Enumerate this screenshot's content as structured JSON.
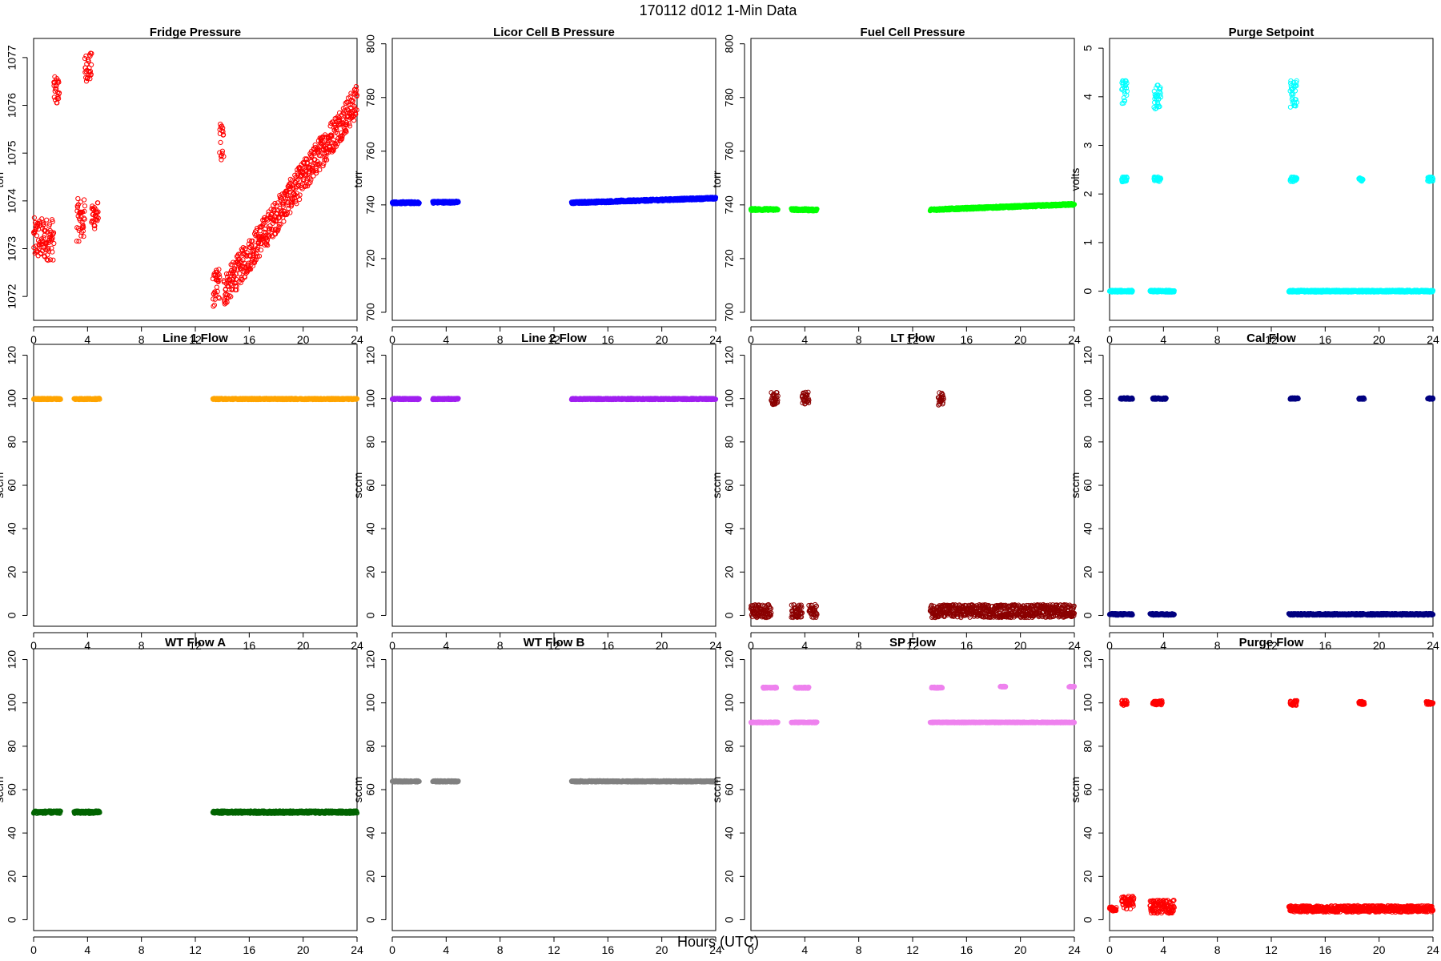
{
  "page": {
    "title": "170112   d012   1-Min Data",
    "xlabel": "Hours (UTC)"
  },
  "chart_data": [
    {
      "type": "scatter",
      "title": "Fridge Pressure",
      "ylabel": "torr",
      "color": "#ff0000",
      "xlim": [
        0,
        24
      ],
      "ylim": [
        1071.5,
        1077.4
      ],
      "yticks": [
        1072,
        1073,
        1074,
        1075,
        1076,
        1077
      ],
      "xticks": [
        0,
        4,
        8,
        12,
        16,
        20,
        24
      ],
      "segments": [
        {
          "x0": 0.0,
          "x1": 1.5,
          "y0": 1073.2,
          "y1": 1073.2,
          "spread": 0.45
        },
        {
          "x0": 1.5,
          "x1": 1.9,
          "y0": 1076.3,
          "y1": 1076.3,
          "spread": 0.3
        },
        {
          "x0": 3.2,
          "x1": 3.8,
          "y0": 1073.6,
          "y1": 1073.6,
          "spread": 0.45
        },
        {
          "x0": 3.8,
          "x1": 4.3,
          "y0": 1076.8,
          "y1": 1076.8,
          "spread": 0.3
        },
        {
          "x0": 4.3,
          "x1": 4.8,
          "y0": 1073.7,
          "y1": 1073.7,
          "spread": 0.3
        },
        {
          "x0": 13.3,
          "x1": 13.8,
          "y0": 1072.1,
          "y1": 1072.3,
          "spread": 0.35
        },
        {
          "x0": 13.8,
          "x1": 14.1,
          "y0": 1075.2,
          "y1": 1075.2,
          "spread": 0.45
        },
        {
          "x0": 14.1,
          "x1": 24.0,
          "y0": 1072.1,
          "y1": 1076.1,
          "spread": 0.35
        }
      ]
    },
    {
      "type": "scatter",
      "title": "Licor Cell B Pressure",
      "ylabel": "torr",
      "color": "#0000ff",
      "xlim": [
        0,
        24
      ],
      "ylim": [
        697,
        802
      ],
      "yticks": [
        700,
        720,
        740,
        760,
        780,
        800
      ],
      "xticks": [
        0,
        4,
        8,
        12,
        16,
        20,
        24
      ],
      "segments": [
        {
          "x0": 0.0,
          "x1": 2.0,
          "y0": 740.8,
          "y1": 740.8,
          "spread": 0.4
        },
        {
          "x0": 3.0,
          "x1": 4.9,
          "y0": 741.0,
          "y1": 741.0,
          "spread": 0.4
        },
        {
          "x0": 13.3,
          "x1": 24.0,
          "y0": 740.8,
          "y1": 742.5,
          "spread": 0.4
        }
      ]
    },
    {
      "type": "scatter",
      "title": "Fuel Cell Pressure",
      "ylabel": "torr",
      "color": "#00ff00",
      "xlim": [
        0,
        24
      ],
      "ylim": [
        697,
        802
      ],
      "yticks": [
        700,
        720,
        740,
        760,
        780,
        800
      ],
      "xticks": [
        0,
        4,
        8,
        12,
        16,
        20,
        24
      ],
      "segments": [
        {
          "x0": 0.0,
          "x1": 2.0,
          "y0": 738.3,
          "y1": 738.3,
          "spread": 0.4
        },
        {
          "x0": 3.0,
          "x1": 4.9,
          "y0": 738.3,
          "y1": 738.1,
          "spread": 0.4
        },
        {
          "x0": 13.3,
          "x1": 24.0,
          "y0": 738.2,
          "y1": 740.2,
          "spread": 0.4
        }
      ]
    },
    {
      "type": "scatter",
      "title": "Purge Setpoint",
      "ylabel": "volts",
      "color": "#00ffff",
      "xlim": [
        0,
        24
      ],
      "ylim": [
        -0.6,
        5.2
      ],
      "yticks": [
        0,
        1,
        2,
        3,
        4,
        5
      ],
      "xticks": [
        0,
        4,
        8,
        12,
        16,
        20,
        24
      ],
      "segments": [
        {
          "x0": 0.0,
          "x1": 1.7,
          "y0": 0,
          "y1": 0,
          "spread": 0.02
        },
        {
          "x0": 0.9,
          "x1": 1.3,
          "y0": 4.1,
          "y1": 4.1,
          "spread": 0.25
        },
        {
          "x0": 0.9,
          "x1": 1.3,
          "y0": 2.3,
          "y1": 2.3,
          "spread": 0.05
        },
        {
          "x0": 3.0,
          "x1": 4.8,
          "y0": 0,
          "y1": 0,
          "spread": 0.02
        },
        {
          "x0": 3.3,
          "x1": 3.8,
          "y0": 4.0,
          "y1": 4.0,
          "spread": 0.25
        },
        {
          "x0": 3.3,
          "x1": 3.8,
          "y0": 2.3,
          "y1": 2.3,
          "spread": 0.05
        },
        {
          "x0": 13.3,
          "x1": 24.0,
          "y0": 0,
          "y1": 0,
          "spread": 0.02
        },
        {
          "x0": 13.4,
          "x1": 13.9,
          "y0": 4.05,
          "y1": 4.05,
          "spread": 0.28
        },
        {
          "x0": 13.4,
          "x1": 13.9,
          "y0": 2.3,
          "y1": 2.3,
          "spread": 0.05
        },
        {
          "x0": 18.5,
          "x1": 18.8,
          "y0": 2.3,
          "y1": 2.3,
          "spread": 0.04
        },
        {
          "x0": 23.6,
          "x1": 24.0,
          "y0": 2.3,
          "y1": 2.3,
          "spread": 0.05
        }
      ]
    },
    {
      "type": "scatter",
      "title": "Line 1 Flow",
      "ylabel": "sccm",
      "color": "#ffa500",
      "xlim": [
        0,
        24
      ],
      "ylim": [
        -5,
        125
      ],
      "yticks": [
        0,
        20,
        40,
        60,
        80,
        100,
        120
      ],
      "xticks": [
        0,
        4,
        8,
        12,
        16,
        20,
        24
      ],
      "segments": [
        {
          "x0": 0.0,
          "x1": 2.0,
          "y0": 99.8,
          "y1": 99.8,
          "spread": 0.3
        },
        {
          "x0": 3.0,
          "x1": 4.9,
          "y0": 99.8,
          "y1": 99.8,
          "spread": 0.3
        },
        {
          "x0": 13.3,
          "x1": 24.0,
          "y0": 99.8,
          "y1": 99.8,
          "spread": 0.3
        }
      ]
    },
    {
      "type": "scatter",
      "title": "Line 2 Flow",
      "ylabel": "sccm",
      "color": "#a020f0",
      "xlim": [
        0,
        24
      ],
      "ylim": [
        -5,
        125
      ],
      "yticks": [
        0,
        20,
        40,
        60,
        80,
        100,
        120
      ],
      "xticks": [
        0,
        4,
        8,
        12,
        16,
        20,
        24
      ],
      "segments": [
        {
          "x0": 0.0,
          "x1": 2.0,
          "y0": 99.8,
          "y1": 99.8,
          "spread": 0.3
        },
        {
          "x0": 3.0,
          "x1": 4.9,
          "y0": 99.8,
          "y1": 99.8,
          "spread": 0.3
        },
        {
          "x0": 13.3,
          "x1": 24.0,
          "y0": 99.8,
          "y1": 99.8,
          "spread": 0.3
        }
      ]
    },
    {
      "type": "scatter",
      "title": "LT Flow",
      "ylabel": "sccm",
      "color": "#8b0000",
      "xlim": [
        0,
        24
      ],
      "ylim": [
        -5,
        125
      ],
      "yticks": [
        0,
        20,
        40,
        60,
        80,
        100,
        120
      ],
      "xticks": [
        0,
        4,
        8,
        12,
        16,
        20,
        24
      ],
      "segments": [
        {
          "x0": 0.0,
          "x1": 1.5,
          "y0": 2,
          "y1": 2,
          "spread": 3
        },
        {
          "x0": 1.5,
          "x1": 2.0,
          "y0": 100,
          "y1": 100,
          "spread": 3
        },
        {
          "x0": 3.0,
          "x1": 3.8,
          "y0": 2,
          "y1": 2,
          "spread": 3
        },
        {
          "x0": 3.8,
          "x1": 4.3,
          "y0": 100,
          "y1": 100,
          "spread": 3
        },
        {
          "x0": 4.3,
          "x1": 4.9,
          "y0": 2,
          "y1": 2,
          "spread": 3
        },
        {
          "x0": 13.3,
          "x1": 24.0,
          "y0": 2,
          "y1": 2,
          "spread": 3
        },
        {
          "x0": 13.9,
          "x1": 14.3,
          "y0": 100,
          "y1": 100,
          "spread": 3
        }
      ]
    },
    {
      "type": "scatter",
      "title": "Cal Flow",
      "ylabel": "sccm",
      "color": "#000080",
      "xlim": [
        0,
        24
      ],
      "ylim": [
        -5,
        125
      ],
      "yticks": [
        0,
        20,
        40,
        60,
        80,
        100,
        120
      ],
      "xticks": [
        0,
        4,
        8,
        12,
        16,
        20,
        24
      ],
      "segments": [
        {
          "x0": 0.0,
          "x1": 1.7,
          "y0": 0.5,
          "y1": 0.5,
          "spread": 0.4
        },
        {
          "x0": 0.8,
          "x1": 1.7,
          "y0": 100,
          "y1": 100,
          "spread": 0.4
        },
        {
          "x0": 3.0,
          "x1": 4.8,
          "y0": 0.5,
          "y1": 0.5,
          "spread": 0.4
        },
        {
          "x0": 3.2,
          "x1": 4.2,
          "y0": 100,
          "y1": 100,
          "spread": 0.4
        },
        {
          "x0": 13.3,
          "x1": 24.0,
          "y0": 0.5,
          "y1": 0.5,
          "spread": 0.4
        },
        {
          "x0": 13.4,
          "x1": 14.0,
          "y0": 100,
          "y1": 100,
          "spread": 0.4
        },
        {
          "x0": 18.5,
          "x1": 18.9,
          "y0": 100,
          "y1": 100,
          "spread": 0.4
        },
        {
          "x0": 23.6,
          "x1": 24.0,
          "y0": 100,
          "y1": 100,
          "spread": 0.4
        }
      ]
    },
    {
      "type": "scatter",
      "title": "WT Flow A",
      "ylabel": "sccm",
      "color": "#006400",
      "xlim": [
        0,
        24
      ],
      "ylim": [
        -5,
        125
      ],
      "yticks": [
        0,
        20,
        40,
        60,
        80,
        100,
        120
      ],
      "xticks": [
        0,
        4,
        8,
        12,
        16,
        20,
        24
      ],
      "segments": [
        {
          "x0": 0.0,
          "x1": 2.0,
          "y0": 49.6,
          "y1": 49.6,
          "spread": 0.6
        },
        {
          "x0": 3.0,
          "x1": 4.9,
          "y0": 49.6,
          "y1": 49.6,
          "spread": 0.6
        },
        {
          "x0": 13.3,
          "x1": 24.0,
          "y0": 49.6,
          "y1": 49.6,
          "spread": 0.6
        }
      ]
    },
    {
      "type": "scatter",
      "title": "WT Flow B",
      "ylabel": "sccm",
      "color": "#808080",
      "xlim": [
        0,
        24
      ],
      "ylim": [
        -5,
        125
      ],
      "yticks": [
        0,
        20,
        40,
        60,
        80,
        100,
        120
      ],
      "xticks": [
        0,
        4,
        8,
        12,
        16,
        20,
        24
      ],
      "segments": [
        {
          "x0": 0.0,
          "x1": 2.0,
          "y0": 63.8,
          "y1": 63.8,
          "spread": 0.3
        },
        {
          "x0": 3.0,
          "x1": 4.9,
          "y0": 63.8,
          "y1": 63.8,
          "spread": 0.3
        },
        {
          "x0": 13.3,
          "x1": 24.0,
          "y0": 63.8,
          "y1": 63.8,
          "spread": 0.3
        }
      ]
    },
    {
      "type": "scatter",
      "title": "SP Flow",
      "ylabel": "sccm",
      "color": "#ee82ee",
      "xlim": [
        0,
        24
      ],
      "ylim": [
        -5,
        125
      ],
      "yticks": [
        0,
        20,
        40,
        60,
        80,
        100,
        120
      ],
      "xticks": [
        0,
        4,
        8,
        12,
        16,
        20,
        24
      ],
      "segments": [
        {
          "x0": 0.0,
          "x1": 2.0,
          "y0": 91,
          "y1": 91,
          "spread": 0.2
        },
        {
          "x0": 0.9,
          "x1": 1.9,
          "y0": 107,
          "y1": 107,
          "spread": 0.3
        },
        {
          "x0": 3.0,
          "x1": 4.9,
          "y0": 91,
          "y1": 91,
          "spread": 0.2
        },
        {
          "x0": 3.3,
          "x1": 4.3,
          "y0": 107,
          "y1": 107,
          "spread": 0.3
        },
        {
          "x0": 13.3,
          "x1": 24.0,
          "y0": 91,
          "y1": 91,
          "spread": 0.2
        },
        {
          "x0": 13.4,
          "x1": 14.2,
          "y0": 107,
          "y1": 107,
          "spread": 0.3
        },
        {
          "x0": 18.5,
          "x1": 18.9,
          "y0": 107.5,
          "y1": 107.5,
          "spread": 0.2
        },
        {
          "x0": 23.6,
          "x1": 24.0,
          "y0": 107.5,
          "y1": 107.5,
          "spread": 0.2
        }
      ]
    },
    {
      "type": "scatter",
      "title": "Purge Flow",
      "ylabel": "sccm",
      "color": "#ff0000",
      "xlim": [
        0,
        24
      ],
      "ylim": [
        -5,
        125
      ],
      "yticks": [
        0,
        20,
        40,
        60,
        80,
        100,
        120
      ],
      "xticks": [
        0,
        4,
        8,
        12,
        16,
        20,
        24
      ],
      "segments": [
        {
          "x0": 0.0,
          "x1": 0.5,
          "y0": 5,
          "y1": 5,
          "spread": 1
        },
        {
          "x0": 0.9,
          "x1": 1.8,
          "y0": 8,
          "y1": 8,
          "spread": 3
        },
        {
          "x0": 0.9,
          "x1": 1.3,
          "y0": 100,
          "y1": 100,
          "spread": 1.2
        },
        {
          "x0": 3.0,
          "x1": 4.8,
          "y0": 6,
          "y1": 6,
          "spread": 3
        },
        {
          "x0": 3.2,
          "x1": 3.9,
          "y0": 100,
          "y1": 100,
          "spread": 1
        },
        {
          "x0": 13.3,
          "x1": 24.0,
          "y0": 5,
          "y1": 5,
          "spread": 1.5
        },
        {
          "x0": 13.4,
          "x1": 13.9,
          "y0": 100,
          "y1": 100,
          "spread": 1.2
        },
        {
          "x0": 18.5,
          "x1": 18.9,
          "y0": 100,
          "y1": 100,
          "spread": 0.8
        },
        {
          "x0": 23.5,
          "x1": 24.0,
          "y0": 100,
          "y1": 100,
          "spread": 0.8
        }
      ]
    }
  ]
}
